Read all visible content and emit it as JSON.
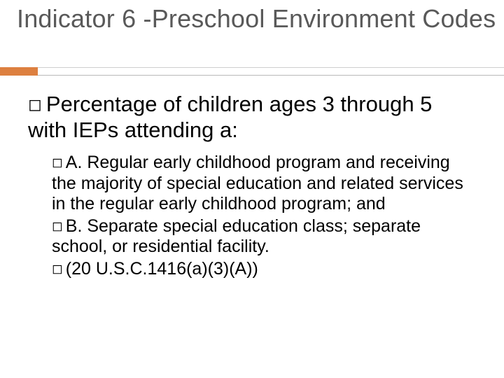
{
  "slide": {
    "title": "Indicator 6 -Preschool Environment Codes",
    "title_color": "#595959",
    "accent_color": "#dd8040",
    "line_color_top": "#cfcfcf",
    "line_color_bottom": "#b8b8b8",
    "lead_bullet": "◻",
    "lead_text": "Percentage of children ages 3 through 5 with IEPs attending a:",
    "sub_bullet": "◻",
    "items": [
      "A. Regular early childhood program and receiving the majority of special education and related services in the regular early childhood program; and",
      "B. Separate special education class; separate school, or residential facility.",
      "(20 U.S.C.1416(a)(3)(A))"
    ]
  }
}
